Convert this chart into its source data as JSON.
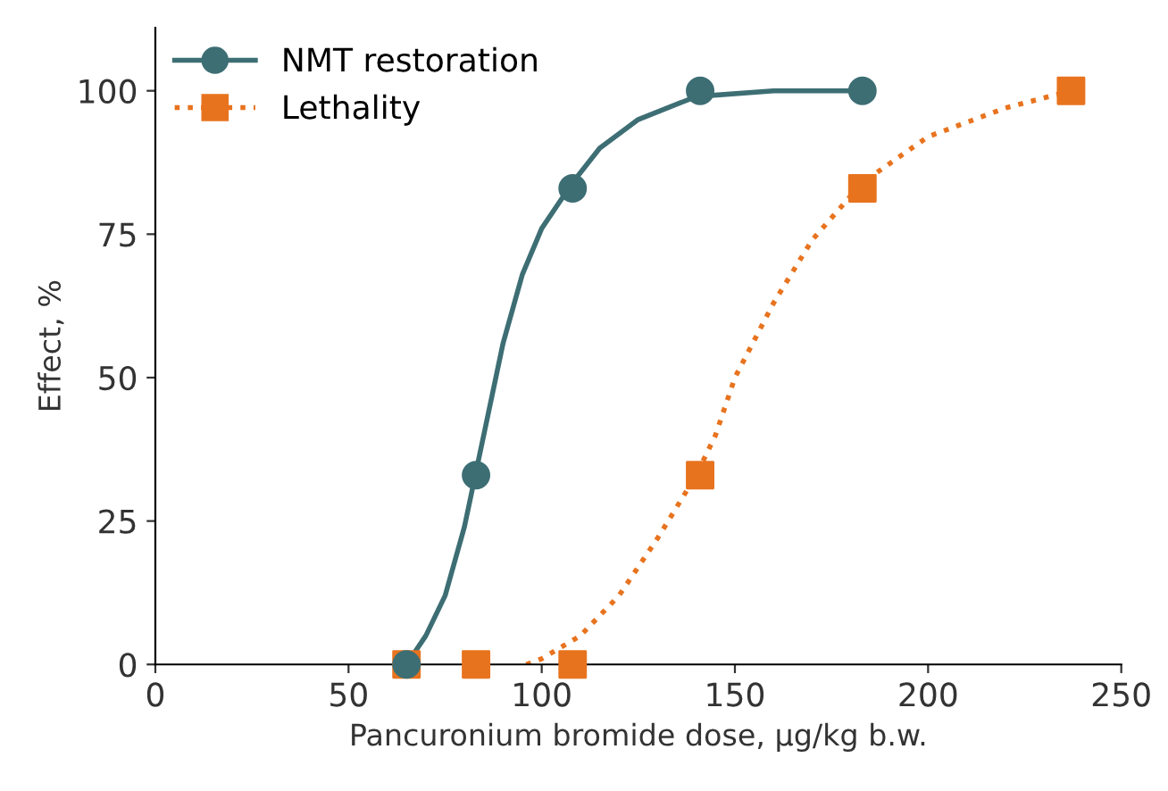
{
  "chart_data": {
    "type": "line",
    "xlabel": "Pancuronium bromide dose, µg/kg b.w.",
    "ylabel": "Effect, %",
    "xlim": [
      0,
      250
    ],
    "xticks": [
      0,
      50,
      100,
      150,
      200,
      250
    ],
    "ylim": [
      0,
      111
    ],
    "yticks": [
      0,
      25,
      50,
      75,
      100
    ],
    "grid": false,
    "legend": "top left",
    "series": [
      {
        "name": "NMT restoration",
        "color": "#3d6e74",
        "type": "scatter",
        "marker": "circle",
        "x": [
          65,
          83,
          108,
          141,
          183
        ],
        "values": [
          0,
          33,
          83,
          100,
          100
        ]
      },
      {
        "name": "Lethality",
        "color": "#e8731e",
        "type": "scatter",
        "marker": "square",
        "x": [
          65,
          83,
          108,
          141,
          183,
          237
        ],
        "values": [
          0,
          0,
          0,
          33,
          83,
          100
        ]
      },
      {
        "color": "#3d6e74",
        "line_style": "solid",
        "x": [
          65,
          70,
          75,
          80,
          85,
          90,
          95,
          100,
          108,
          115,
          125,
          140,
          160,
          183
        ],
        "values": [
          0,
          5,
          12,
          24,
          40,
          56,
          68,
          76,
          84,
          90,
          95,
          99,
          100,
          100
        ]
      },
      {
        "color": "#e8731e",
        "line_style": "dotted",
        "x": [
          96,
          100,
          110,
          120,
          130,
          140,
          145,
          150,
          160,
          170,
          183,
          200,
          220,
          237
        ],
        "values": [
          0,
          1,
          5,
          12,
          22,
          33,
          40,
          50,
          63,
          74,
          84,
          92,
          97,
          100
        ]
      }
    ]
  }
}
